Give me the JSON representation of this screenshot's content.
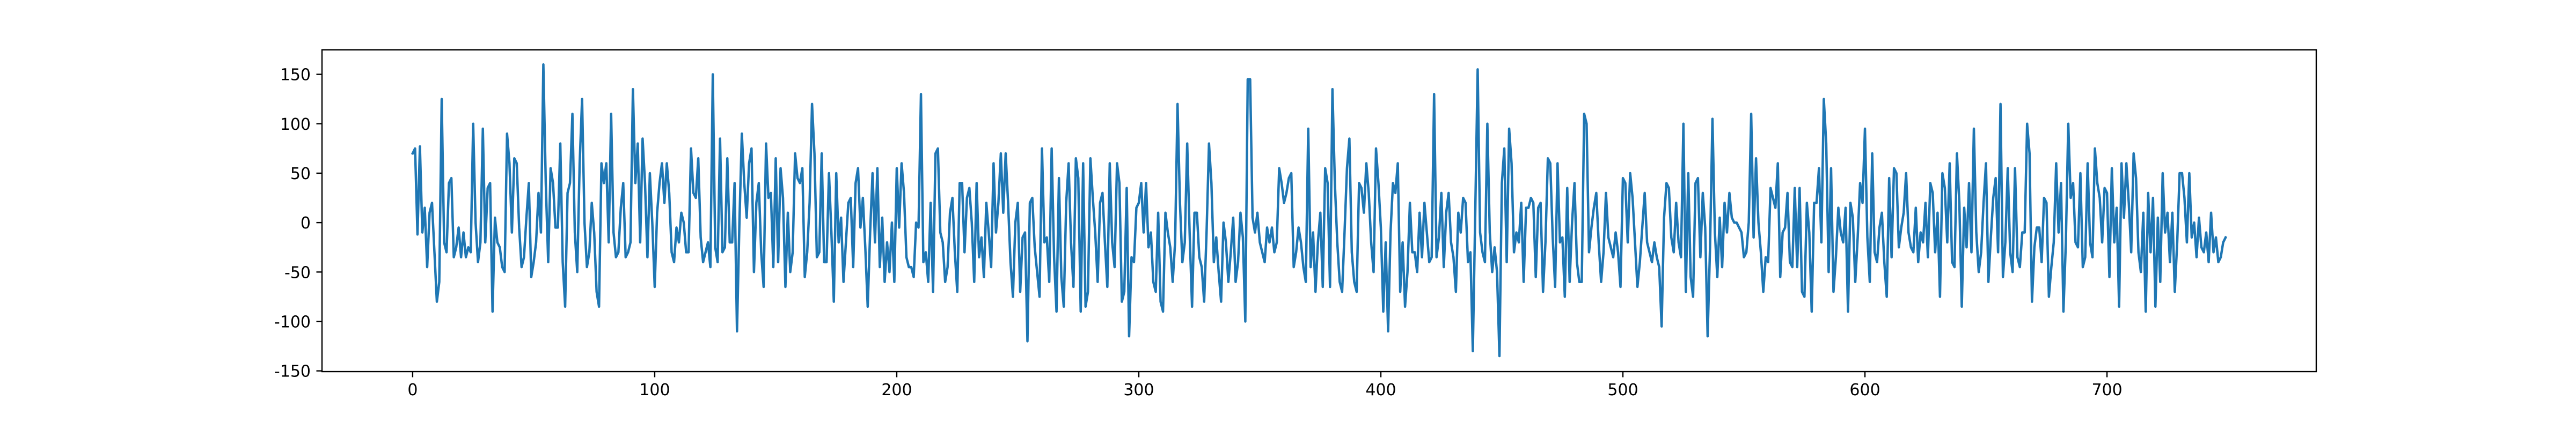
{
  "chart_data": {
    "type": "line",
    "color": "#1f77b4",
    "xlim": [
      -37.45,
      786.45
    ],
    "xticks": [
      0,
      100,
      200,
      300,
      400,
      500,
      600,
      700
    ],
    "ylim": [
      -150.75,
      174.75
    ],
    "yticks": [
      -150,
      -100,
      -50,
      0,
      50,
      100,
      150
    ],
    "values": [
      70,
      75,
      -12,
      77,
      -10,
      15,
      -45,
      10,
      20,
      -30,
      -80,
      -60,
      125,
      -20,
      -30,
      40,
      45,
      -35,
      -25,
      -5,
      -35,
      -10,
      -35,
      -25,
      -30,
      100,
      0,
      -40,
      -20,
      95,
      -20,
      35,
      40,
      -90,
      5,
      -20,
      -25,
      -45,
      -50,
      90,
      60,
      -10,
      65,
      60,
      -5,
      -45,
      -35,
      5,
      40,
      -55,
      -40,
      -20,
      30,
      -10,
      160,
      40,
      -40,
      55,
      40,
      -5,
      -5,
      80,
      -40,
      -85,
      30,
      40,
      110,
      -10,
      -50,
      60,
      125,
      0,
      -45,
      -30,
      20,
      -10,
      -70,
      -85,
      60,
      40,
      60,
      -20,
      110,
      -10,
      -35,
      -30,
      15,
      40,
      -35,
      -30,
      -20,
      135,
      40,
      80,
      -20,
      85,
      40,
      -35,
      50,
      0,
      -65,
      10,
      40,
      60,
      20,
      60,
      30,
      -30,
      -40,
      -5,
      -20,
      10,
      0,
      -30,
      -30,
      75,
      30,
      25,
      65,
      -15,
      -40,
      -30,
      -20,
      -45,
      150,
      -25,
      -40,
      85,
      -30,
      -25,
      65,
      -20,
      -20,
      40,
      -110,
      0,
      90,
      40,
      5,
      60,
      75,
      -50,
      20,
      40,
      -30,
      -65,
      80,
      25,
      30,
      -45,
      65,
      -40,
      55,
      25,
      -65,
      10,
      -50,
      -30,
      70,
      45,
      40,
      55,
      -55,
      -30,
      20,
      120,
      70,
      -35,
      -30,
      70,
      -40,
      -40,
      50,
      -10,
      -80,
      50,
      -20,
      5,
      -60,
      -20,
      20,
      25,
      -45,
      40,
      55,
      -5,
      25,
      -25,
      -85,
      -10,
      50,
      -20,
      55,
      -45,
      5,
      -60,
      -20,
      -50,
      0,
      -60,
      55,
      -5,
      60,
      30,
      -35,
      -45,
      -45,
      -55,
      0,
      -5,
      130,
      -40,
      -30,
      -60,
      20,
      -70,
      70,
      75,
      -10,
      -20,
      -60,
      -45,
      10,
      25,
      -30,
      -70,
      40,
      40,
      -30,
      25,
      35,
      0,
      -60,
      40,
      -35,
      -15,
      -55,
      20,
      -10,
      -45,
      60,
      -10,
      20,
      70,
      10,
      70,
      20,
      -40,
      -75,
      0,
      20,
      -70,
      -15,
      -10,
      -120,
      20,
      25,
      -25,
      -50,
      -75,
      75,
      -20,
      -15,
      -60,
      75,
      -35,
      -90,
      45,
      -55,
      -85,
      20,
      60,
      -20,
      -65,
      65,
      45,
      -90,
      60,
      -85,
      -70,
      65,
      25,
      -10,
      -60,
      20,
      30,
      -20,
      -65,
      60,
      -20,
      -45,
      60,
      40,
      -80,
      -70,
      35,
      -115,
      -35,
      -40,
      15,
      20,
      40,
      -10,
      40,
      -25,
      -10,
      -60,
      -70,
      10,
      -80,
      -90,
      10,
      -10,
      -25,
      -60,
      -20,
      120,
      20,
      -40,
      -20,
      80,
      -10,
      -85,
      10,
      10,
      -35,
      -45,
      -80,
      -10,
      80,
      40,
      -40,
      -15,
      -50,
      -80,
      0,
      -20,
      -60,
      -30,
      5,
      -60,
      -40,
      10,
      -15,
      -100,
      145,
      145,
      5,
      -10,
      10,
      -20,
      -30,
      -40,
      -5,
      -20,
      -5,
      -30,
      -20,
      55,
      40,
      20,
      30,
      45,
      50,
      -45,
      -30,
      -5,
      -20,
      -45,
      -60,
      95,
      -45,
      -10,
      -70,
      -20,
      10,
      -65,
      55,
      40,
      -65,
      135,
      40,
      -20,
      -60,
      -70,
      -10,
      55,
      85,
      -30,
      -60,
      -70,
      40,
      35,
      10,
      60,
      30,
      -20,
      -50,
      75,
      40,
      -5,
      -90,
      -20,
      -110,
      -10,
      40,
      30,
      60,
      -70,
      -20,
      -85,
      -50,
      20,
      -30,
      -30,
      -50,
      10,
      -35,
      20,
      -10,
      -40,
      -35,
      130,
      -35,
      -15,
      30,
      -45,
      10,
      30,
      -20,
      -35,
      -70,
      10,
      -10,
      25,
      20,
      -40,
      -30,
      -130,
      10,
      155,
      -10,
      -30,
      -40,
      100,
      -10,
      -50,
      -25,
      -50,
      -135,
      40,
      75,
      -40,
      95,
      60,
      -30,
      -10,
      -20,
      20,
      -60,
      15,
      15,
      25,
      20,
      -55,
      15,
      20,
      -70,
      -20,
      65,
      60,
      -15,
      -65,
      60,
      -20,
      -15,
      -75,
      35,
      -60,
      0,
      40,
      -40,
      -60,
      -60,
      110,
      100,
      -30,
      -5,
      15,
      30,
      -20,
      -60,
      -30,
      30,
      -15,
      -25,
      -35,
      -10,
      -30,
      -65,
      45,
      40,
      -20,
      50,
      25,
      -20,
      -65,
      -40,
      -5,
      30,
      -20,
      -30,
      -40,
      -20,
      -35,
      -45,
      -105,
      5,
      40,
      35,
      -15,
      -30,
      20,
      -20,
      -35,
      100,
      -70,
      50,
      -55,
      -75,
      40,
      45,
      -35,
      30,
      -5,
      -115,
      -25,
      105,
      -10,
      -55,
      5,
      -45,
      20,
      -10,
      30,
      5,
      0,
      0,
      -5,
      -10,
      -35,
      -30,
      0,
      110,
      -15,
      65,
      0,
      -30,
      -70,
      -35,
      -40,
      35,
      25,
      15,
      60,
      -55,
      -10,
      -5,
      30,
      -40,
      -45,
      35,
      -45,
      35,
      -70,
      -75,
      20,
      -10,
      -90,
      20,
      20,
      55,
      -20,
      125,
      80,
      -50,
      55,
      -70,
      -35,
      15,
      -10,
      -20,
      15,
      -90,
      20,
      5,
      -60,
      -15,
      40,
      20,
      95,
      -15,
      -60,
      70,
      -30,
      -40,
      -5,
      10,
      -40,
      -75,
      45,
      -35,
      55,
      50,
      -25,
      -5,
      10,
      50,
      -10,
      -25,
      -30,
      15,
      -40,
      -10,
      -20,
      20,
      -35,
      40,
      30,
      -30,
      10,
      -75,
      50,
      35,
      -20,
      60,
      -40,
      -45,
      70,
      20,
      -85,
      15,
      -25,
      40,
      -30,
      95,
      -10,
      -50,
      -30,
      20,
      60,
      -60,
      -15,
      25,
      45,
      -30,
      120,
      -55,
      -20,
      55,
      -30,
      -50,
      55,
      -35,
      -45,
      -10,
      -10,
      100,
      70,
      -80,
      -25,
      -5,
      -5,
      -40,
      25,
      20,
      -75,
      -45,
      -20,
      60,
      -10,
      40,
      -90,
      -20,
      100,
      25,
      40,
      -20,
      -25,
      50,
      -45,
      -35,
      60,
      -20,
      -35,
      75,
      40,
      25,
      -20,
      35,
      30,
      -55,
      55,
      -20,
      15,
      -85,
      60,
      5,
      60,
      20,
      -30,
      70,
      45,
      -30,
      -50,
      10,
      -90,
      30,
      -30,
      25,
      -85,
      5,
      -60,
      50,
      -10,
      10,
      -40,
      10,
      -70,
      -20,
      50,
      50,
      25,
      -20,
      50,
      -15,
      0,
      -35,
      5,
      -25,
      -30,
      -10,
      -40,
      10,
      -30,
      -15,
      -40,
      -35,
      -20,
      -15
    ]
  }
}
